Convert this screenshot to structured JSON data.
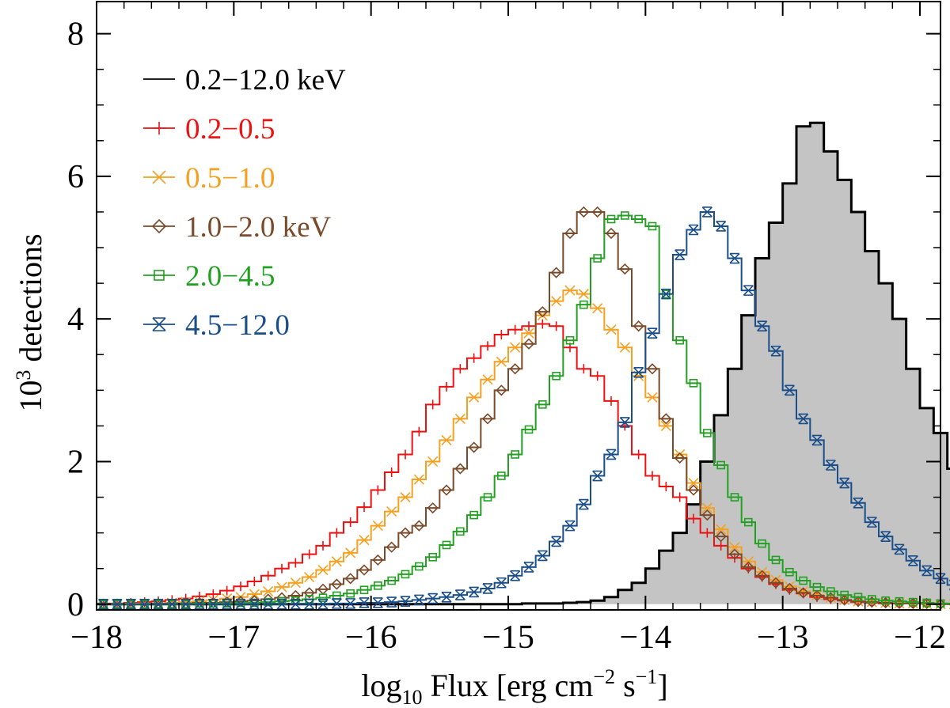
{
  "chart_data": {
    "type": "histogram-step",
    "xlabel": {
      "main": "log",
      "sub": "10",
      "rest": " Flux [erg cm",
      "sup1": "−2",
      "mid": " s",
      "sup2": "−1",
      "end": "]"
    },
    "ylabel": {
      "pre": "10",
      "sup": "3",
      "post": " detections"
    },
    "xlim": [
      -18,
      -11.85
    ],
    "ylim": [
      -0.08,
      8.45
    ],
    "xticks": [
      -18,
      -17,
      -16,
      -15,
      -14,
      -13,
      -12
    ],
    "xtick_labels": [
      "−18",
      "−17",
      "−16",
      "−15",
      "−14",
      "−13",
      "−12"
    ],
    "yticks": [
      0,
      2,
      4,
      6,
      8
    ],
    "ytick_labels": [
      "0",
      "2",
      "4",
      "6",
      "8"
    ],
    "bin_start": -18.0,
    "bin_width": 0.1,
    "series": [
      {
        "name": "0.2–12.0 keV",
        "label": "0.2−12.0 keV",
        "color": "#000000",
        "marker": "none",
        "filled": true,
        "values": [
          0,
          0,
          0,
          0,
          0,
          0,
          0,
          0,
          0,
          0,
          0,
          0,
          0,
          0,
          0,
          0,
          0,
          0,
          0,
          0,
          0,
          0,
          0,
          0,
          0,
          0,
          0,
          0,
          0,
          0,
          0,
          0.01,
          0.01,
          0.01,
          0.02,
          0.03,
          0.05,
          0.1,
          0.2,
          0.3,
          0.5,
          0.75,
          1.0,
          1.4,
          2.0,
          2.65,
          3.3,
          4.05,
          4.85,
          5.35,
          5.9,
          6.7,
          6.75,
          6.35,
          5.95,
          5.5,
          4.95,
          4.5,
          4.0,
          3.3,
          2.75,
          2.4,
          1.9,
          1.5,
          1.15,
          0.8,
          0.6,
          0.42,
          0.32,
          0.22,
          0.16,
          0.13,
          0.1,
          0.06,
          0.04,
          0.02,
          0.01,
          0.01
        ]
      },
      {
        "name": "0.2–0.5",
        "label": "0.2−0.5",
        "color": "#ee1111",
        "marker": "plus",
        "filled": false,
        "values": [
          0.01,
          0.01,
          0.02,
          0.03,
          0.04,
          0.06,
          0.08,
          0.11,
          0.14,
          0.19,
          0.25,
          0.32,
          0.4,
          0.5,
          0.58,
          0.7,
          0.82,
          1.0,
          1.15,
          1.36,
          1.6,
          1.85,
          2.1,
          2.42,
          2.8,
          3.05,
          3.3,
          3.45,
          3.62,
          3.78,
          3.85,
          3.9,
          3.93,
          3.9,
          3.6,
          3.3,
          3.2,
          2.85,
          2.5,
          2.1,
          1.8,
          1.65,
          1.5,
          1.2,
          1.0,
          0.82,
          0.65,
          0.5,
          0.38,
          0.28,
          0.2,
          0.15,
          0.1,
          0.07,
          0.05,
          0.03,
          0.02,
          0.01,
          0.01,
          0.01,
          0.01,
          0.01,
          0,
          0,
          0,
          0,
          0,
          0,
          0,
          0,
          0,
          0,
          0,
          0,
          0,
          0,
          0,
          0
        ]
      },
      {
        "name": "0.5–1.0",
        "label": "0.5−1.0",
        "color": "#f5a020",
        "marker": "x",
        "filled": false,
        "values": [
          0,
          0,
          0.01,
          0.01,
          0.01,
          0.02,
          0.03,
          0.04,
          0.06,
          0.08,
          0.1,
          0.14,
          0.18,
          0.24,
          0.3,
          0.38,
          0.48,
          0.6,
          0.72,
          0.9,
          1.1,
          1.3,
          1.5,
          1.75,
          2.0,
          2.3,
          2.6,
          2.9,
          3.15,
          3.4,
          3.6,
          3.8,
          4.05,
          4.25,
          4.4,
          4.35,
          4.15,
          3.85,
          3.6,
          3.2,
          2.9,
          2.5,
          2.1,
          1.7,
          1.35,
          1.05,
          0.8,
          0.6,
          0.45,
          0.34,
          0.25,
          0.18,
          0.13,
          0.09,
          0.06,
          0.04,
          0.03,
          0.02,
          0.01,
          0.01,
          0,
          0,
          0,
          0,
          0,
          0,
          0,
          0,
          0,
          0,
          0,
          0,
          0,
          0,
          0,
          0,
          0,
          0
        ]
      },
      {
        "name": "1.0–2.0 keV",
        "label": "1.0−2.0 keV",
        "color": "#7b4a2a",
        "marker": "diamond",
        "filled": false,
        "values": [
          0,
          0,
          0,
          0,
          0.01,
          0.01,
          0.01,
          0.02,
          0.02,
          0.03,
          0.04,
          0.05,
          0.07,
          0.09,
          0.12,
          0.16,
          0.21,
          0.28,
          0.36,
          0.48,
          0.62,
          0.8,
          1.0,
          1.1,
          1.35,
          1.6,
          1.9,
          2.2,
          2.6,
          3.0,
          3.3,
          3.65,
          4.1,
          4.65,
          5.2,
          5.5,
          5.5,
          5.2,
          4.7,
          3.9,
          3.3,
          2.6,
          2.05,
          1.6,
          1.25,
          0.95,
          0.7,
          0.52,
          0.4,
          0.3,
          0.22,
          0.16,
          0.12,
          0.09,
          0.06,
          0.04,
          0.03,
          0.02,
          0.01,
          0.01,
          0.01,
          0,
          0,
          0,
          0,
          0,
          0,
          0,
          0,
          0,
          0,
          0,
          0,
          0,
          0,
          0,
          0,
          0
        ]
      },
      {
        "name": "2.0–4.5",
        "label": "2.0−4.5",
        "color": "#22a022",
        "marker": "square",
        "filled": false,
        "values": [
          0,
          0,
          0,
          0,
          0,
          0,
          0,
          0.01,
          0.01,
          0.01,
          0.02,
          0.02,
          0.03,
          0.04,
          0.05,
          0.07,
          0.09,
          0.12,
          0.15,
          0.2,
          0.26,
          0.33,
          0.42,
          0.53,
          0.66,
          0.83,
          1.02,
          1.25,
          1.5,
          1.8,
          2.1,
          2.45,
          2.8,
          3.2,
          3.7,
          4.2,
          4.85,
          5.4,
          5.45,
          5.4,
          5.3,
          4.35,
          3.7,
          3.1,
          2.4,
          1.95,
          1.5,
          1.15,
          0.85,
          0.62,
          0.45,
          0.33,
          0.24,
          0.18,
          0.13,
          0.1,
          0.07,
          0.05,
          0.04,
          0.03,
          0.02,
          0.01,
          0.01,
          0,
          0,
          0,
          0,
          0,
          0,
          0,
          0,
          0,
          0,
          0,
          0,
          0,
          0,
          0
        ]
      },
      {
        "name": "4.5–12.0",
        "label": "4.5−12.0",
        "color": "#1a4e8a",
        "marker": "xbar",
        "filled": false,
        "values": [
          0,
          0,
          0,
          0,
          0,
          0,
          0,
          0,
          0,
          0,
          0,
          0,
          0,
          0,
          0,
          0,
          0,
          0.01,
          0.01,
          0.02,
          0.02,
          0.03,
          0.04,
          0.06,
          0.08,
          0.1,
          0.13,
          0.17,
          0.22,
          0.3,
          0.4,
          0.52,
          0.68,
          0.88,
          1.1,
          1.4,
          1.8,
          2.1,
          2.55,
          3.25,
          3.8,
          4.35,
          4.9,
          5.25,
          5.5,
          5.3,
          4.85,
          4.4,
          3.9,
          3.55,
          3.0,
          2.6,
          2.3,
          1.95,
          1.7,
          1.42,
          1.15,
          0.95,
          0.77,
          0.61,
          0.47,
          0.36,
          0.27,
          0.2,
          0.14,
          0.1,
          0.07,
          0.05,
          0.03,
          0.02,
          0.01,
          0.01,
          0,
          0,
          0,
          0,
          0,
          0
        ]
      }
    ]
  }
}
